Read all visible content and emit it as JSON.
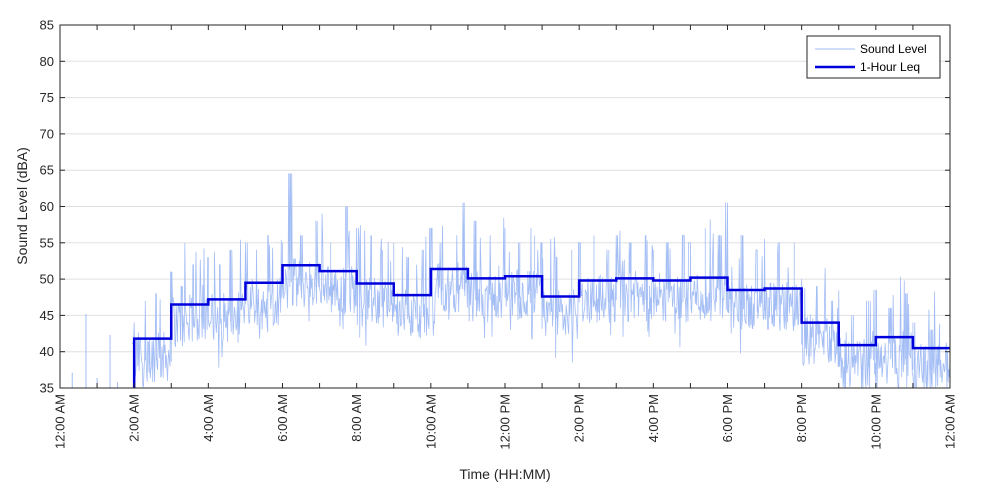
{
  "chart_data": {
    "type": "line",
    "xlabel": "Time (HH:MM)",
    "ylabel": "Sound Level (dBA)",
    "ylim": [
      35,
      85
    ],
    "yticks": [
      35,
      40,
      45,
      50,
      55,
      60,
      65,
      70,
      75,
      80,
      85
    ],
    "xlim_hours": [
      0,
      24
    ],
    "xtick_labels": [
      "12:00 AM",
      "2:00 AM",
      "4:00 AM",
      "6:00 AM",
      "8:00 AM",
      "10:00 AM",
      "12:00 PM",
      "2:00 PM",
      "4:00 PM",
      "6:00 PM",
      "8:00 PM",
      "10:00 PM",
      "12:00 AM"
    ],
    "grid": "horizontal",
    "legend_position": "top-right",
    "colors": {
      "sound_level": "#a3bdf5",
      "leq": "#0000dd",
      "grid": "#e0e0e0",
      "axis": "#262626"
    },
    "series": [
      {
        "name": "Sound Level",
        "style": "thin-line",
        "description_hours": [
          0,
          24
        ],
        "anchor_hours": [
          0.3,
          0.6,
          0.7,
          1.0,
          1.3,
          1.5,
          1.8,
          2.0,
          2.3,
          2.6,
          3.0,
          3.3,
          3.6,
          4.0,
          4.3,
          4.6,
          5.0,
          5.3,
          5.6,
          6.0,
          6.2,
          6.5,
          6.9,
          7.3,
          7.7,
          8.0,
          8.4,
          8.7,
          9.0,
          9.4,
          9.8,
          10.0,
          10.3,
          10.7,
          10.9,
          11.2,
          11.6,
          12.0,
          12.4,
          12.8,
          13.0,
          13.4,
          13.8,
          14.0,
          14.4,
          14.8,
          15.0,
          15.4,
          15.8,
          16.0,
          16.4,
          16.8,
          17.0,
          17.4,
          17.8,
          18.0,
          18.4,
          18.8,
          19.0,
          19.4,
          19.8,
          20.0,
          20.4,
          20.8,
          21.0,
          21.4,
          21.8,
          22.0,
          22.4,
          22.8,
          23.0,
          23.5,
          24.0
        ],
        "peak_values": [
          37,
          36,
          45,
          36,
          42,
          40,
          46,
          44,
          47,
          48,
          51,
          49,
          52,
          53,
          52,
          54,
          55,
          54,
          56,
          55,
          64.5,
          56,
          58,
          55,
          60,
          57,
          56,
          54,
          55,
          53,
          54,
          57,
          55,
          56,
          60.5,
          58,
          56,
          57,
          55,
          56,
          55,
          53,
          54,
          55,
          56,
          54,
          56,
          55,
          56,
          54,
          55,
          56,
          55,
          57,
          56,
          60.5,
          56,
          54,
          55.5,
          55,
          55,
          50,
          49,
          47,
          46,
          45,
          47,
          48.5,
          46,
          48,
          44,
          43,
          42
        ]
      },
      {
        "name": "1-Hour Leq",
        "style": "thick-step",
        "hour_values": [
          null,
          null,
          41.8,
          46.5,
          47.2,
          49.5,
          51.9,
          51.1,
          49.4,
          47.8,
          51.4,
          50.1,
          50.4,
          47.6,
          49.8,
          50.1,
          49.8,
          50.2,
          48.5,
          48.7,
          44.0,
          40.9,
          42.0,
          40.5
        ]
      }
    ]
  }
}
